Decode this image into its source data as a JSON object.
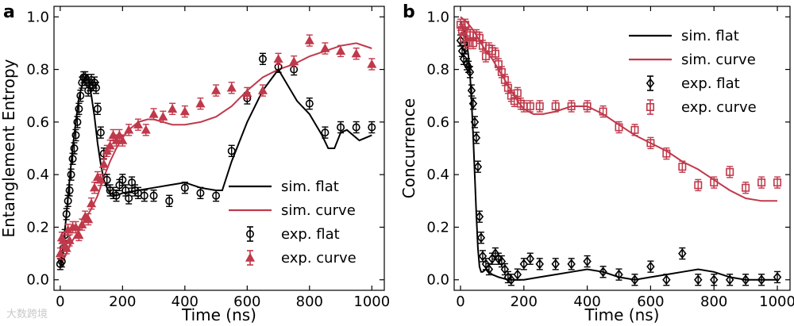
{
  "colors": {
    "flat": "#000000",
    "curve": "#c0394b"
  },
  "watermark": "大数跨境",
  "chart_data": [
    {
      "panel": "a",
      "type": "line",
      "xlabel": "Time (ns)",
      "ylabel": "Entanglement Entropy",
      "xlim": [
        -20,
        1040
      ],
      "ylim": [
        -0.04,
        1.04
      ],
      "xticks": [
        0,
        200,
        400,
        600,
        800,
        1000
      ],
      "xtick_labels": [
        "0",
        "200",
        "400",
        "600",
        "800",
        "1000"
      ],
      "yticks": [
        0.0,
        0.2,
        0.4,
        0.6,
        0.8,
        1.0
      ],
      "ytick_labels": [
        "0.0",
        "0.2",
        "0.4",
        "0.6",
        "0.8",
        "1.0"
      ],
      "legend_position": "lower-right",
      "legend": [
        {
          "label": "sim. flat",
          "kind": "line",
          "color": "#000000"
        },
        {
          "label": "sim. curve",
          "kind": "line",
          "color": "#c0394b"
        },
        {
          "label": "exp. flat",
          "kind": "marker-circle",
          "color": "#000000"
        },
        {
          "label": "exp. curve",
          "kind": "marker-triangle",
          "color": "#c0394b"
        }
      ],
      "series": [
        {
          "name": "sim. flat",
          "kind": "line",
          "color": "#000000",
          "x": [
            0,
            10,
            20,
            30,
            40,
            50,
            60,
            70,
            80,
            90,
            100,
            110,
            120,
            130,
            140,
            150,
            160,
            180,
            200,
            250,
            300,
            350,
            400,
            450,
            500,
            520,
            550,
            600,
            650,
            700,
            730,
            760,
            800,
            840,
            860,
            880,
            900,
            920,
            960,
            1000
          ],
          "y": [
            0.05,
            0.13,
            0.25,
            0.38,
            0.5,
            0.6,
            0.69,
            0.74,
            0.77,
            0.76,
            0.7,
            0.62,
            0.52,
            0.44,
            0.38,
            0.35,
            0.33,
            0.32,
            0.33,
            0.34,
            0.35,
            0.36,
            0.37,
            0.35,
            0.34,
            0.34,
            0.45,
            0.6,
            0.72,
            0.8,
            0.74,
            0.68,
            0.63,
            0.55,
            0.5,
            0.5,
            0.56,
            0.57,
            0.53,
            0.55
          ]
        },
        {
          "name": "sim. curve",
          "kind": "line",
          "color": "#c0394b",
          "x": [
            0,
            20,
            40,
            60,
            80,
            100,
            120,
            140,
            160,
            180,
            200,
            220,
            250,
            280,
            300,
            330,
            360,
            400,
            450,
            500,
            550,
            600,
            650,
            700,
            750,
            800,
            850,
            900,
            950,
            1000
          ],
          "y": [
            0.05,
            0.1,
            0.15,
            0.19,
            0.23,
            0.27,
            0.32,
            0.39,
            0.45,
            0.5,
            0.54,
            0.57,
            0.6,
            0.61,
            0.61,
            0.6,
            0.59,
            0.59,
            0.6,
            0.62,
            0.66,
            0.72,
            0.77,
            0.8,
            0.82,
            0.85,
            0.87,
            0.89,
            0.9,
            0.88
          ]
        },
        {
          "name": "exp. flat",
          "kind": "marker-circle",
          "color": "#000000",
          "x": [
            0,
            5,
            10,
            15,
            20,
            25,
            30,
            35,
            40,
            45,
            50,
            55,
            60,
            65,
            70,
            75,
            80,
            85,
            90,
            95,
            100,
            105,
            110,
            115,
            120,
            130,
            140,
            150,
            160,
            170,
            180,
            190,
            200,
            210,
            220,
            230,
            240,
            250,
            270,
            300,
            350,
            400,
            450,
            500,
            550,
            600,
            650,
            700,
            750,
            800,
            850,
            900,
            950,
            1000
          ],
          "y": [
            0.06,
            0.07,
            0.12,
            0.17,
            0.25,
            0.3,
            0.34,
            0.4,
            0.46,
            0.5,
            0.55,
            0.6,
            0.65,
            0.7,
            0.75,
            0.77,
            0.77,
            0.76,
            0.72,
            0.74,
            0.76,
            0.74,
            0.75,
            0.73,
            0.65,
            0.56,
            0.48,
            0.38,
            0.34,
            0.33,
            0.32,
            0.36,
            0.38,
            0.34,
            0.31,
            0.37,
            0.34,
            0.33,
            0.32,
            0.32,
            0.3,
            0.35,
            0.33,
            0.32,
            0.49,
            0.69,
            0.84,
            0.81,
            0.8,
            0.67,
            0.56,
            0.58,
            0.58,
            0.58
          ]
        },
        {
          "name": "exp. curve",
          "kind": "marker-triangle",
          "color": "#c0394b",
          "x": [
            0,
            5,
            10,
            15,
            20,
            25,
            30,
            40,
            50,
            60,
            70,
            80,
            90,
            100,
            110,
            120,
            130,
            140,
            150,
            160,
            170,
            180,
            190,
            200,
            220,
            250,
            275,
            300,
            330,
            360,
            400,
            450,
            500,
            550,
            600,
            650,
            700,
            750,
            800,
            850,
            900,
            950,
            1000
          ],
          "y": [
            0.1,
            0.16,
            0.15,
            0.13,
            0.12,
            0.19,
            0.15,
            0.2,
            0.2,
            0.17,
            0.21,
            0.24,
            0.23,
            0.29,
            0.35,
            0.39,
            0.38,
            0.44,
            0.49,
            0.51,
            0.55,
            0.53,
            0.55,
            0.53,
            0.57,
            0.59,
            0.57,
            0.63,
            0.62,
            0.65,
            0.64,
            0.67,
            0.72,
            0.73,
            0.71,
            0.72,
            0.84,
            0.83,
            0.91,
            0.88,
            0.87,
            0.86,
            0.82
          ]
        }
      ]
    },
    {
      "panel": "b",
      "type": "line",
      "xlabel": "Time (ns)",
      "ylabel": "Concurrence",
      "xlim": [
        -20,
        1040
      ],
      "ylim": [
        -0.04,
        1.04
      ],
      "xticks": [
        0,
        200,
        400,
        600,
        800,
        1000
      ],
      "xtick_labels": [
        "0",
        "200",
        "400",
        "600",
        "800",
        "1000"
      ],
      "yticks": [
        0.0,
        0.2,
        0.4,
        0.6,
        0.8,
        1.0
      ],
      "ytick_labels": [
        "0.0",
        "0.2",
        "0.4",
        "0.6",
        "0.8",
        "1.0"
      ],
      "legend_position": "upper-right",
      "legend": [
        {
          "label": "sim. flat",
          "kind": "line",
          "color": "#000000"
        },
        {
          "label": "sim. curve",
          "kind": "line",
          "color": "#c0394b"
        },
        {
          "label": "exp. flat",
          "kind": "marker-diamond",
          "color": "#000000"
        },
        {
          "label": "exp. curve",
          "kind": "marker-square",
          "color": "#c0394b"
        }
      ],
      "series": [
        {
          "name": "sim. flat",
          "kind": "line",
          "color": "#000000",
          "x": [
            0,
            10,
            20,
            25,
            30,
            35,
            40,
            45,
            50,
            55,
            60,
            65,
            70,
            80,
            90,
            100,
            120,
            150,
            200,
            250,
            300,
            350,
            400,
            450,
            500,
            550,
            600,
            650,
            700,
            750,
            800,
            850,
            900,
            950,
            1000
          ],
          "y": [
            0.98,
            0.95,
            0.9,
            0.85,
            0.78,
            0.68,
            0.55,
            0.4,
            0.25,
            0.12,
            0.05,
            0.03,
            0.03,
            0.04,
            0.03,
            0.02,
            0.01,
            0.0,
            0.0,
            0.01,
            0.02,
            0.03,
            0.04,
            0.03,
            0.01,
            0.0,
            0.01,
            0.02,
            0.03,
            0.04,
            0.03,
            0.01,
            0.0,
            0.0,
            0.0
          ]
        },
        {
          "name": "sim. curve",
          "kind": "line",
          "color": "#c0394b",
          "x": [
            0,
            20,
            40,
            60,
            80,
            100,
            120,
            140,
            160,
            180,
            200,
            230,
            260,
            300,
            350,
            400,
            450,
            500,
            550,
            600,
            650,
            700,
            750,
            800,
            850,
            900,
            950,
            1000
          ],
          "y": [
            1.0,
            0.98,
            0.95,
            0.91,
            0.87,
            0.84,
            0.8,
            0.76,
            0.72,
            0.68,
            0.65,
            0.63,
            0.63,
            0.64,
            0.66,
            0.66,
            0.63,
            0.59,
            0.55,
            0.52,
            0.49,
            0.45,
            0.42,
            0.38,
            0.34,
            0.31,
            0.3,
            0.3
          ]
        },
        {
          "name": "exp. flat",
          "kind": "marker-diamond",
          "color": "#000000",
          "x": [
            0,
            5,
            10,
            15,
            20,
            25,
            30,
            35,
            40,
            45,
            50,
            55,
            60,
            65,
            70,
            80,
            90,
            100,
            110,
            120,
            130,
            140,
            150,
            160,
            180,
            200,
            220,
            250,
            300,
            350,
            400,
            450,
            500,
            550,
            600,
            650,
            700,
            750,
            800,
            850,
            900,
            950,
            1000
          ],
          "y": [
            0.91,
            0.87,
            0.84,
            0.88,
            0.82,
            0.81,
            0.79,
            0.72,
            0.67,
            0.6,
            0.54,
            0.43,
            0.24,
            0.16,
            0.09,
            0.06,
            0.04,
            0.08,
            0.1,
            0.08,
            0.07,
            0.04,
            0.01,
            0.0,
            0.02,
            0.06,
            0.08,
            0.06,
            0.06,
            0.06,
            0.07,
            0.03,
            0.02,
            0.0,
            0.05,
            0.0,
            0.1,
            0.0,
            0.0,
            0.0,
            0.0,
            0.0,
            0.01
          ]
        },
        {
          "name": "exp. curve",
          "kind": "marker-square",
          "color": "#c0394b",
          "x": [
            0,
            5,
            10,
            15,
            20,
            25,
            30,
            40,
            50,
            60,
            70,
            80,
            90,
            100,
            110,
            120,
            130,
            140,
            150,
            160,
            170,
            180,
            190,
            200,
            220,
            250,
            300,
            350,
            400,
            450,
            500,
            550,
            600,
            650,
            700,
            750,
            800,
            850,
            900,
            950,
            1000
          ],
          "y": [
            0.97,
            0.95,
            0.92,
            0.97,
            0.94,
            0.9,
            0.93,
            0.9,
            0.93,
            0.92,
            0.89,
            0.85,
            0.88,
            0.87,
            0.86,
            0.82,
            0.79,
            0.76,
            0.73,
            0.7,
            0.68,
            0.71,
            0.67,
            0.66,
            0.66,
            0.66,
            0.66,
            0.66,
            0.66,
            0.64,
            0.58,
            0.57,
            0.52,
            0.48,
            0.43,
            0.36,
            0.37,
            0.41,
            0.35,
            0.37,
            0.37
          ]
        }
      ]
    }
  ]
}
